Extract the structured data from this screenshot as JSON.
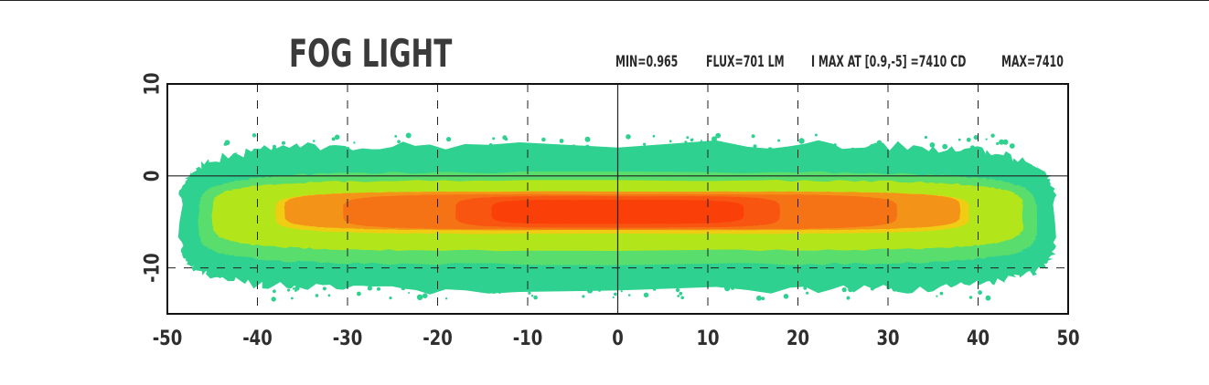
{
  "chart_data": {
    "type": "heatmap",
    "title": "FOG LIGHT",
    "stats": {
      "min": "MIN=0.965",
      "flux": "FLUX=701 LM",
      "imax": "I MAX AT  [0.9,-5] =7410 CD",
      "max": "MAX=7410"
    },
    "x_range": [
      -50,
      50
    ],
    "y_range": [
      -15,
      10
    ],
    "x_ticks": [
      -50,
      -40,
      -30,
      -20,
      -10,
      0,
      10,
      20,
      30,
      40,
      50
    ],
    "y_ticks": [
      10,
      0,
      -10
    ],
    "x_tick_labels": [
      "-50",
      "-40",
      "-30",
      "-20",
      "-10",
      "0",
      "10",
      "20",
      "30",
      "40",
      "50"
    ],
    "y_tick_labels": [
      "10",
      "0",
      "-10"
    ],
    "grid": true,
    "zones": [
      {
        "level": 1,
        "color": "#2ed18f",
        "cx": 0.0,
        "cy": -5.0,
        "rx_left": 48.5,
        "rx_right": 48.5,
        "ry_up": 8.5,
        "ry_down": 7.5
      },
      {
        "level": 2,
        "color": "#59dd6c",
        "cx": 0.0,
        "cy": -4.8,
        "rx_left": 46.5,
        "rx_right": 46.5,
        "ry_up": 5.2,
        "ry_down": 4.8
      },
      {
        "level": 3,
        "color": "#b2e61b",
        "cx": 0.0,
        "cy": -4.3,
        "rx_left": 45.0,
        "rx_right": 45.0,
        "ry_up": 3.8,
        "ry_down": 3.8
      },
      {
        "level": 4,
        "color": "#f0cc12",
        "cx": 0.5,
        "cy": -4.0,
        "rx_left": 38.5,
        "rx_right": 38.5,
        "ry_up": 2.3,
        "ry_down": 2.3
      },
      {
        "level": 5,
        "color": "#f39418",
        "cx": 1.0,
        "cy": -3.8,
        "rx_left": 38.0,
        "rx_right": 37.0,
        "ry_up": 2.1,
        "ry_down": 2.1
      },
      {
        "level": 6,
        "color": "#f57215",
        "cx": 0.0,
        "cy": -3.9,
        "rx_left": 30.5,
        "rx_right": 31.0,
        "ry_up": 1.9,
        "ry_down": 1.9
      },
      {
        "level": 7,
        "color": "#f85510",
        "cx": 0.0,
        "cy": -3.9,
        "rx_left": 18.0,
        "rx_right": 18.0,
        "ry_up": 1.7,
        "ry_down": 1.7
      },
      {
        "level": 8,
        "color": "#fa3f09",
        "cx": -2.0,
        "cy": -3.9,
        "rx_left": 12.0,
        "rx_right": 16.0,
        "ry_up": 1.3,
        "ry_down": 1.3
      }
    ]
  }
}
